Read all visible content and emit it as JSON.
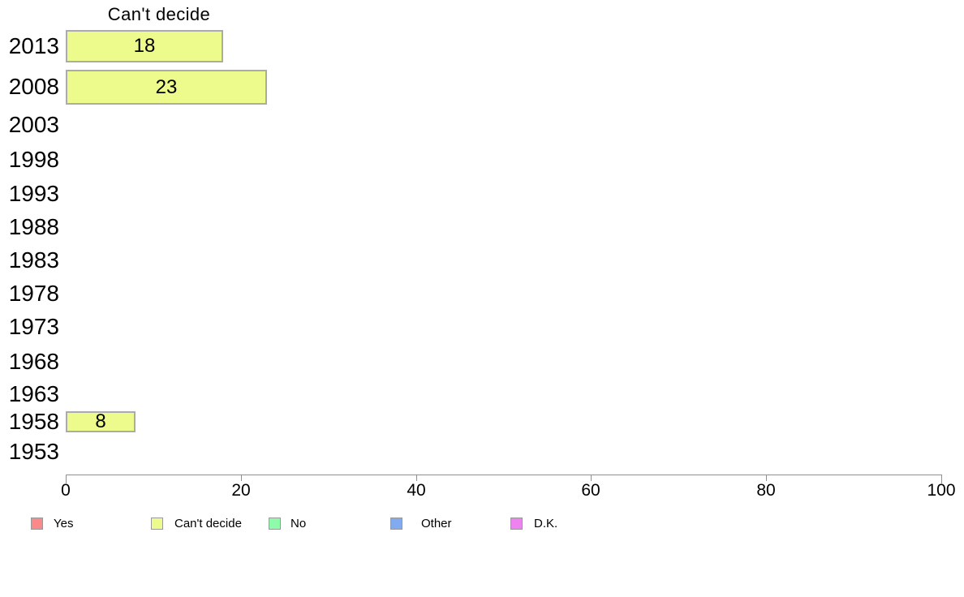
{
  "chart_data": {
    "type": "bar",
    "orientation": "horizontal",
    "title": "Can't decide",
    "series_name": "Can't decide",
    "categories": [
      "2013",
      "2008",
      "2003",
      "1998",
      "1993",
      "1988",
      "1983",
      "1978",
      "1973",
      "1968",
      "1963",
      "1958",
      "1953"
    ],
    "values": [
      18,
      23,
      null,
      null,
      null,
      null,
      null,
      null,
      null,
      null,
      null,
      8,
      null
    ],
    "bar_labels": [
      "18",
      "23",
      "",
      "",
      "",
      "",
      "",
      "",
      "",
      "",
      "",
      "8",
      ""
    ],
    "xlim": [
      0,
      100
    ],
    "x_ticks": [
      0,
      20,
      40,
      60,
      80,
      100
    ],
    "grid": false,
    "legend_position": "bottom",
    "bar_fill": "#EDFB8C",
    "bar_border": "#ABABAB",
    "axis_color": "#909090",
    "legend": [
      {
        "label": "Yes",
        "color": "#FA8A8A"
      },
      {
        "label": "Can't decide",
        "color": "#EDFB8C"
      },
      {
        "label": "No",
        "color": "#8DFBA9"
      },
      {
        "label": "Other",
        "color": "#82AAEE"
      },
      {
        "label": "D.K.",
        "color": "#EE82EE"
      }
    ]
  }
}
